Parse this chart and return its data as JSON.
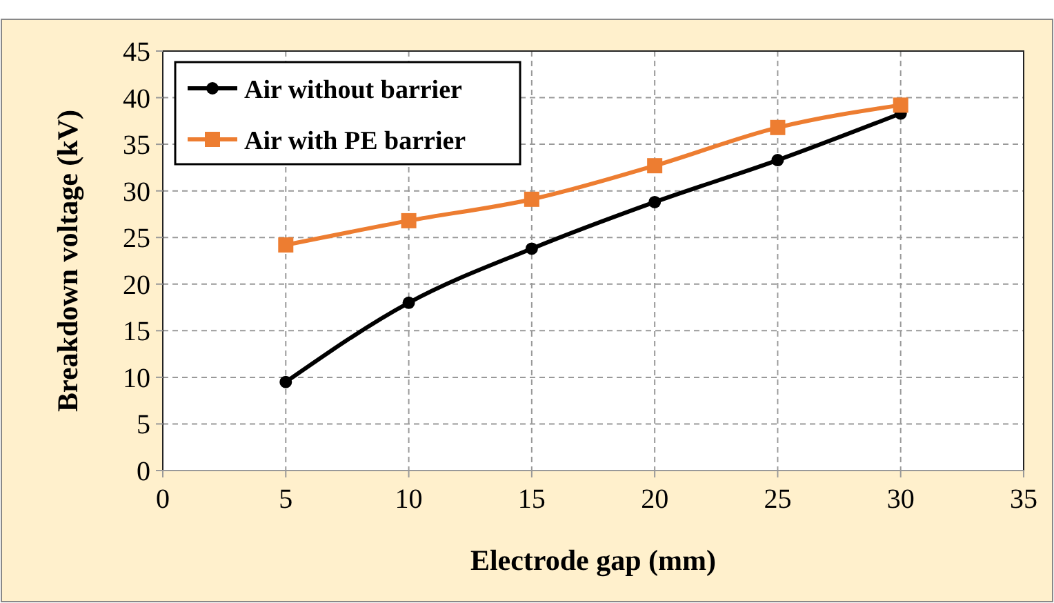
{
  "chart_data": {
    "type": "line",
    "xlabel": "Electrode gap (mm)",
    "ylabel": "Breakdown voltage (kV)",
    "x": [
      5,
      10,
      15,
      20,
      25,
      30
    ],
    "series": [
      {
        "name": "Air without barrier",
        "color": "#000000",
        "marker": "circle",
        "values": [
          9.5,
          18,
          23.8,
          28.8,
          33.3,
          38.3
        ]
      },
      {
        "name": "Air with PE barrier",
        "color": "#ed7d31",
        "marker": "square",
        "values": [
          24.2,
          26.8,
          29.1,
          32.7,
          36.8,
          39.2
        ]
      }
    ],
    "xlim": [
      0,
      35
    ],
    "xticks": [
      0,
      5,
      10,
      15,
      20,
      25,
      30,
      35
    ],
    "ylim": [
      0,
      45
    ],
    "yticks": [
      0,
      5,
      10,
      15,
      20,
      25,
      30,
      35,
      40,
      45
    ],
    "grid": true,
    "legend": "top left",
    "line_style": "solid"
  }
}
